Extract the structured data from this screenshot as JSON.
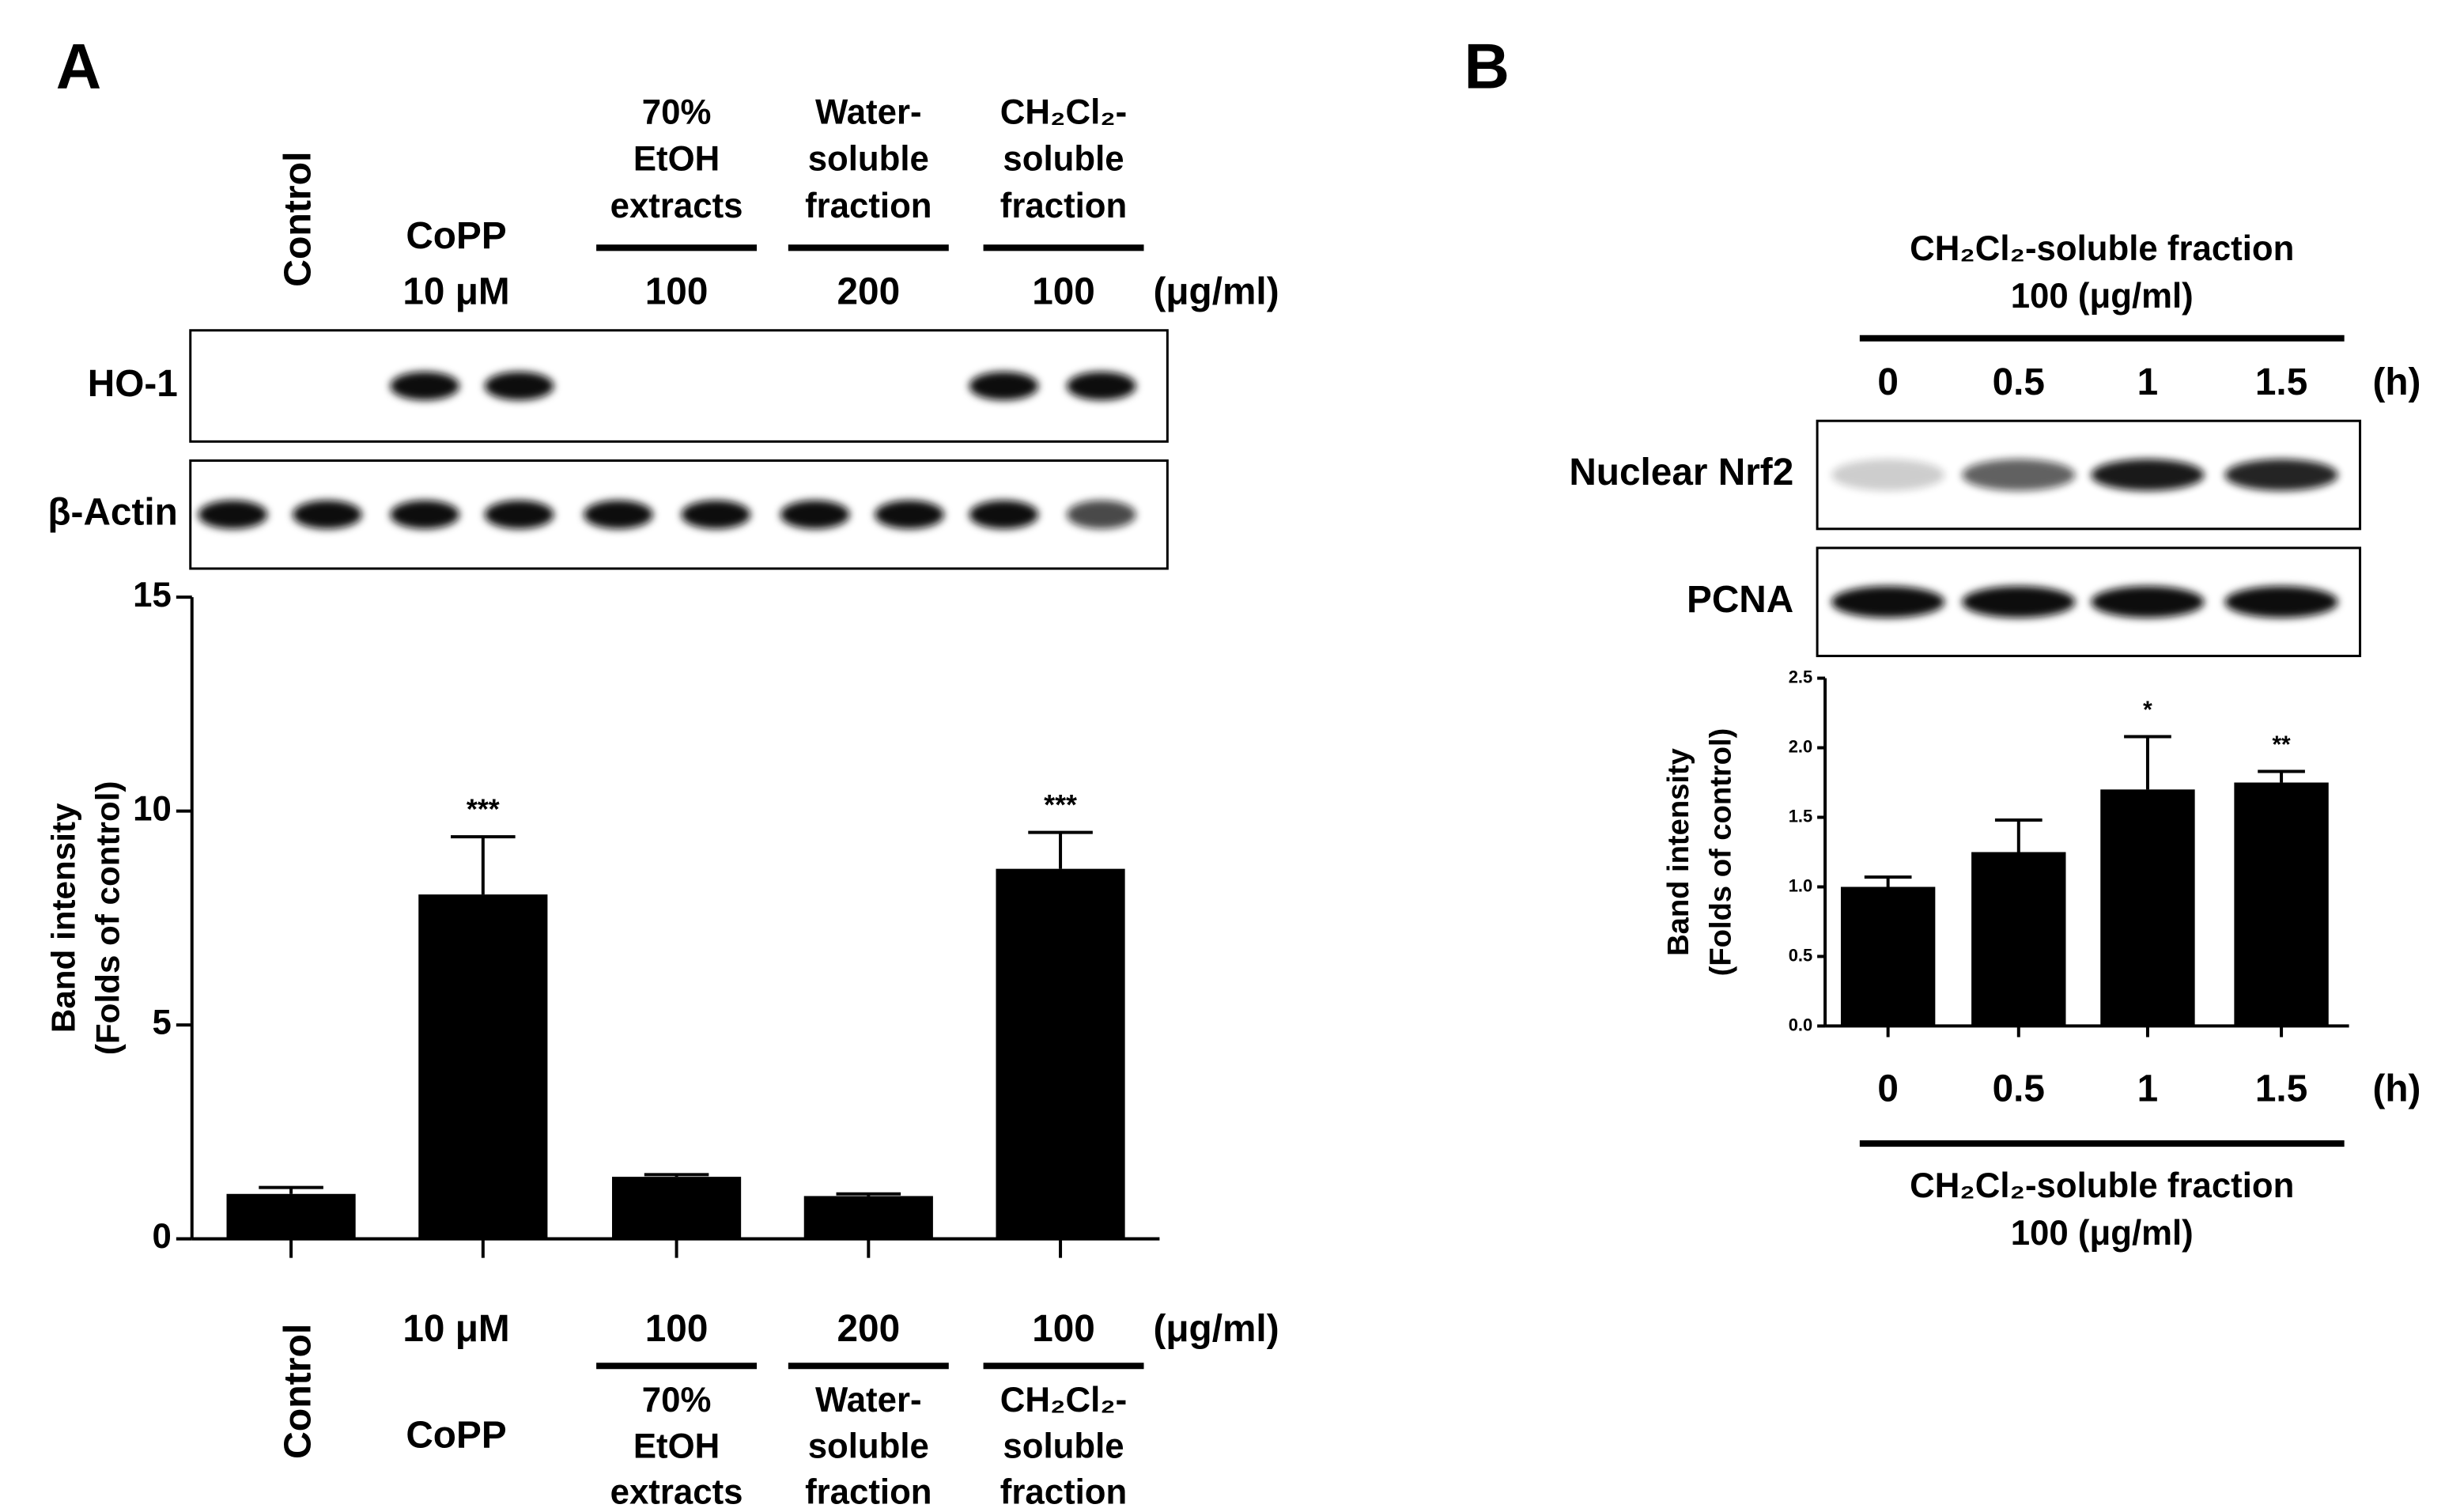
{
  "panels": [
    {
      "label": "A",
      "blots": [
        "HO-1",
        "β-Actin"
      ]
    },
    {
      "label": "B",
      "blots": [
        "Nuclear Nrf2",
        "PCNA"
      ]
    }
  ],
  "chart_data": [
    {
      "type": "bar",
      "ylabel": [
        "Band intensity",
        "(Folds of control)"
      ],
      "categories": [
        "Control",
        "10 μM",
        "100",
        "200",
        "100"
      ],
      "category_groups": [
        null,
        [
          "CoPP"
        ],
        [
          "70%",
          "EtOH",
          "extracts"
        ],
        [
          "Water-",
          "soluble",
          "fraction"
        ],
        [
          "CH₂Cl₂-",
          "soluble",
          "fraction"
        ]
      ],
      "unit": "(μg/ml)",
      "values": [
        1.05,
        8.05,
        1.45,
        1.0,
        8.65
      ],
      "errors": [
        0.15,
        1.35,
        0.05,
        0.05,
        0.85
      ],
      "annotations": [
        null,
        "***",
        null,
        null,
        "***"
      ],
      "color": "#000000",
      "ylim": [
        0,
        15
      ],
      "yticks": [
        0,
        5,
        10,
        15
      ]
    },
    {
      "type": "bar",
      "ylabel": [
        "Band intensity",
        "(Folds of control)"
      ],
      "categories": [
        "0",
        "0.5",
        "1",
        "1.5"
      ],
      "category_group": [
        "CH₂Cl₂-soluble fraction",
        "100 (μg/ml)"
      ],
      "unit": "(h)",
      "values": [
        1.0,
        1.25,
        1.7,
        1.75
      ],
      "errors": [
        0.07,
        0.23,
        0.38,
        0.08
      ],
      "annotations": [
        null,
        null,
        "*",
        "**"
      ],
      "color": "#000000",
      "ylim": [
        0,
        2.5
      ],
      "yticks": [
        {
          "value": 0,
          "label": "0.0"
        },
        0.5,
        {
          "value": 1,
          "label": "1.0"
        },
        1.5,
        {
          "value": 2,
          "label": "2.0"
        },
        2.5
      ]
    }
  ]
}
